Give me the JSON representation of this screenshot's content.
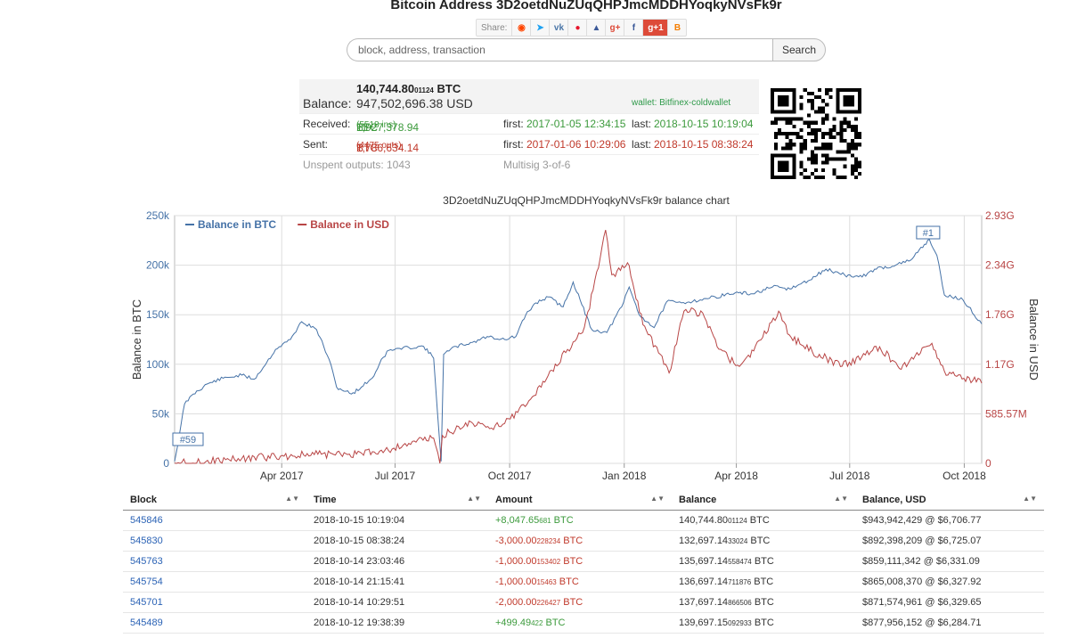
{
  "page_title": "Bitcoin Address 3D2oetdNuZUqQHPJmcMDDHYoqkyNVsFk9r",
  "share": {
    "label": "Share:",
    "gplus_count": "1"
  },
  "search": {
    "placeholder": "block, address, transaction",
    "button_label": "Search"
  },
  "balance": {
    "btc_main": "140,744.80",
    "btc_small": "01124",
    "btc_unit": "BTC",
    "usd_label": "Balance:",
    "usd_value": "947,502,696.38 USD",
    "wallet": "wallet: Bitfinex-coldwallet"
  },
  "received": {
    "label": "Received:",
    "amount_main": "1,927,378.94",
    "amount_small": "11",
    "unit": "BTC",
    "ins": "(5518 ins)",
    "first_label": "first:",
    "first": "2017-01-05 12:34:15",
    "last_label": "last:",
    "last": "2018-10-15 10:19:04"
  },
  "sent": {
    "label": "Sent:",
    "amount_main": "1,786,634.14",
    "amount_small": "1",
    "unit": "BTC",
    "outs": "(4475 outs)",
    "first_label": "first:",
    "first": "2017-01-06 10:29:06",
    "last_label": "last:",
    "last": "2018-10-15 08:38:24"
  },
  "unspent": {
    "label": "Unspent outputs:",
    "count": "1043",
    "multisig": "Multisig 3-of-6"
  },
  "chart_title": "3D2oetdNuZUqQHPJmcMDDHYoqkyNVsFk9r balance chart",
  "chart_data": {
    "type": "line",
    "title": "3D2oetdNuZUqQHPJmcMDDHYoqkyNVsFk9r balance chart",
    "xlabel": "",
    "ylabel": "Balance in BTC",
    "ylabel_right": "Balance in USD",
    "x_ticks": [
      "Apr 2017",
      "Jul 2017",
      "Oct 2017",
      "Jan 2018",
      "Apr 2018",
      "Jul 2018",
      "Oct 2018"
    ],
    "x_tick_dates": [
      "2017-04-01",
      "2017-07-01",
      "2017-10-01",
      "2018-01-01",
      "2018-04-01",
      "2018-07-01",
      "2018-10-01"
    ],
    "x_range": [
      "2017-01-05",
      "2018-10-15"
    ],
    "y_ticks": [
      "0",
      "50k",
      "100k",
      "150k",
      "200k",
      "250k"
    ],
    "ylim": [
      0,
      250000
    ],
    "y2_ticks": [
      "0",
      "585.57M",
      "1.17G",
      "1.76G",
      "2.34G",
      "2.93G"
    ],
    "y2lim": [
      0,
      2930000000
    ],
    "legend": "top-left",
    "grid": true,
    "annotations": [
      {
        "label": "#59",
        "date": "2017-01-05",
        "series": "Balance in BTC"
      },
      {
        "label": "#1",
        "date": "2018-09-02",
        "series": "Balance in BTC"
      }
    ],
    "series": [
      {
        "name": "Balance in BTC",
        "color": "#4572a7",
        "axis": "left",
        "points": [
          [
            "2017-01-05",
            2000
          ],
          [
            "2017-01-09",
            30000
          ],
          [
            "2017-01-13",
            60000
          ],
          [
            "2017-01-20",
            70000
          ],
          [
            "2017-01-31",
            80000
          ],
          [
            "2017-02-13",
            86000
          ],
          [
            "2017-02-28",
            89000
          ],
          [
            "2017-03-10",
            85000
          ],
          [
            "2017-03-20",
            102000
          ],
          [
            "2017-03-27",
            115000
          ],
          [
            "2017-04-08",
            125000
          ],
          [
            "2017-04-17",
            143000
          ],
          [
            "2017-04-29",
            135000
          ],
          [
            "2017-05-09",
            105000
          ],
          [
            "2017-05-15",
            77000
          ],
          [
            "2017-05-27",
            70000
          ],
          [
            "2017-06-04",
            77000
          ],
          [
            "2017-06-14",
            88000
          ],
          [
            "2017-06-20",
            105000
          ],
          [
            "2017-06-26",
            114000
          ],
          [
            "2017-07-12",
            117000
          ],
          [
            "2017-07-24",
            118000
          ],
          [
            "2017-08-01",
            106000
          ],
          [
            "2017-08-07",
            2000
          ],
          [
            "2017-08-09",
            110000
          ],
          [
            "2017-08-19",
            118000
          ],
          [
            "2017-09-01",
            122000
          ],
          [
            "2017-09-13",
            128000
          ],
          [
            "2017-09-27",
            125000
          ],
          [
            "2017-10-06",
            128000
          ],
          [
            "2017-10-14",
            150000
          ],
          [
            "2017-10-22",
            162000
          ],
          [
            "2017-11-01",
            168000
          ],
          [
            "2017-11-13",
            158000
          ],
          [
            "2017-11-21",
            183000
          ],
          [
            "2017-11-28",
            160000
          ],
          [
            "2017-12-06",
            135000
          ],
          [
            "2017-12-18",
            132000
          ],
          [
            "2017-12-30",
            158000
          ],
          [
            "2018-01-05",
            178000
          ],
          [
            "2018-01-13",
            150000
          ],
          [
            "2018-01-25",
            137000
          ],
          [
            "2018-02-04",
            163000
          ],
          [
            "2018-02-16",
            162000
          ],
          [
            "2018-03-03",
            165000
          ],
          [
            "2018-03-15",
            168000
          ],
          [
            "2018-03-31",
            172000
          ],
          [
            "2018-04-14",
            171000
          ],
          [
            "2018-04-30",
            178000
          ],
          [
            "2018-05-14",
            176000
          ],
          [
            "2018-05-30",
            185000
          ],
          [
            "2018-06-12",
            196000
          ],
          [
            "2018-06-27",
            190000
          ],
          [
            "2018-07-11",
            188000
          ],
          [
            "2018-07-21",
            196000
          ],
          [
            "2018-08-07",
            200000
          ],
          [
            "2018-08-19",
            205000
          ],
          [
            "2018-08-30",
            221000
          ],
          [
            "2018-09-03",
            226000
          ],
          [
            "2018-09-09",
            210000
          ],
          [
            "2018-09-15",
            170000
          ],
          [
            "2018-09-30",
            165000
          ],
          [
            "2018-10-15",
            140745
          ]
        ]
      },
      {
        "name": "Balance in USD",
        "color": "#b84545",
        "axis": "right",
        "points": [
          [
            "2017-01-05",
            2000000
          ],
          [
            "2017-01-30",
            20000000
          ],
          [
            "2017-02-28",
            58000000
          ],
          [
            "2017-03-31",
            84000000
          ],
          [
            "2017-04-30",
            108000000
          ],
          [
            "2017-05-31",
            110000000
          ],
          [
            "2017-06-30",
            180000000
          ],
          [
            "2017-07-15",
            260000000
          ],
          [
            "2017-08-01",
            298000000
          ],
          [
            "2017-08-06",
            0
          ],
          [
            "2017-08-08",
            330000000
          ],
          [
            "2017-08-31",
            490000000
          ],
          [
            "2017-09-15",
            410000000
          ],
          [
            "2017-09-30",
            528000000
          ],
          [
            "2017-10-15",
            700000000
          ],
          [
            "2017-11-01",
            1040000000
          ],
          [
            "2017-11-15",
            1310000000
          ],
          [
            "2017-11-30",
            1610000000
          ],
          [
            "2017-12-07",
            2050000000
          ],
          [
            "2017-12-17",
            2760000000
          ],
          [
            "2017-12-22",
            2230000000
          ],
          [
            "2018-01-05",
            2340000000
          ],
          [
            "2018-01-16",
            1640000000
          ],
          [
            "2018-02-06",
            1070000000
          ],
          [
            "2018-02-18",
            1800000000
          ],
          [
            "2018-03-05",
            1780000000
          ],
          [
            "2018-03-18",
            1350000000
          ],
          [
            "2018-04-02",
            1160000000
          ],
          [
            "2018-04-15",
            1330000000
          ],
          [
            "2018-05-05",
            1800000000
          ],
          [
            "2018-05-15",
            1490000000
          ],
          [
            "2018-06-01",
            1320000000
          ],
          [
            "2018-06-25",
            1150000000
          ],
          [
            "2018-07-25",
            1380000000
          ],
          [
            "2018-08-10",
            1120000000
          ],
          [
            "2018-08-31",
            1380000000
          ],
          [
            "2018-09-05",
            1420000000
          ],
          [
            "2018-09-15",
            1090000000
          ],
          [
            "2018-10-15",
            947500000
          ]
        ]
      }
    ]
  },
  "table": {
    "headers": [
      "Block",
      "Time",
      "Amount",
      "Balance",
      "Balance, USD"
    ],
    "rows": [
      {
        "block": "545846",
        "time": "2018-10-15 10:19:04",
        "amount": "+8,047.65",
        "amount_small": "681",
        "amount_unit": "BTC",
        "amount_color": "#3c9a3c",
        "balance": "140,744.80",
        "balance_small": "01124",
        "balance_unit": "BTC",
        "usd": "$943,942,429 @ $6,706.77"
      },
      {
        "block": "545830",
        "time": "2018-10-15 08:38:24",
        "amount": "-3,000.00",
        "amount_small": "228234",
        "amount_unit": "BTC",
        "amount_color": "#c0392b",
        "balance": "132,697.14",
        "balance_small": "33024",
        "balance_unit": "BTC",
        "usd": "$892,398,209 @ $6,725.07"
      },
      {
        "block": "545763",
        "time": "2018-10-14 23:03:46",
        "amount": "-1,000.00",
        "amount_small": "153402",
        "amount_unit": "BTC",
        "amount_color": "#c0392b",
        "balance": "135,697.14",
        "balance_small": "558474",
        "balance_unit": "BTC",
        "usd": "$859,111,342 @ $6,331.09"
      },
      {
        "block": "545754",
        "time": "2018-10-14 21:15:41",
        "amount": "-1,000.00",
        "amount_small": "15463",
        "amount_unit": "BTC",
        "amount_color": "#c0392b",
        "balance": "136,697.14",
        "balance_small": "711876",
        "balance_unit": "BTC",
        "usd": "$865,008,370 @ $6,327.92"
      },
      {
        "block": "545701",
        "time": "2018-10-14 10:29:51",
        "amount": "-2,000.00",
        "amount_small": "226427",
        "amount_unit": "BTC",
        "amount_color": "#c0392b",
        "balance": "137,697.14",
        "balance_small": "866506",
        "balance_unit": "BTC",
        "usd": "$871,574,961 @ $6,329.65"
      },
      {
        "block": "545489",
        "time": "2018-10-12 19:38:39",
        "amount": "+499.49",
        "amount_small": "422",
        "amount_unit": "BTC",
        "amount_color": "#3c9a3c",
        "balance": "139,697.15",
        "balance_small": "092933",
        "balance_unit": "BTC",
        "usd": "$877,956,152 @ $6,284.71"
      }
    ]
  }
}
